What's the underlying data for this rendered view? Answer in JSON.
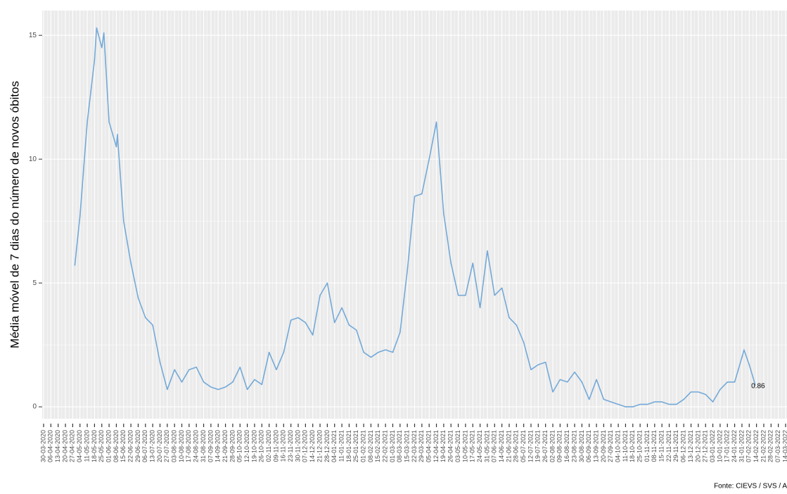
{
  "chart_data": {
    "type": "line",
    "y_label": "Média móvel de 7 dias do número de novos óbitos",
    "caption": "Fonte: CIEVS / SVS / A",
    "color": "#74a9d8",
    "grid": true,
    "end_label": "0.86",
    "ylim": [
      -0.48,
      16
    ],
    "yticks": [
      0,
      5,
      10,
      15
    ],
    "xlim": [
      "30-03-2020",
      "14-03-2022"
    ],
    "xticks": [
      "30-03-2020",
      "06-04-2020",
      "13-04-2020",
      "20-04-2020",
      "27-04-2020",
      "04-05-2020",
      "11-05-2020",
      "18-05-2020",
      "25-05-2020",
      "01-06-2020",
      "08-06-2020",
      "15-06-2020",
      "22-06-2020",
      "29-06-2020",
      "06-07-2020",
      "13-07-2020",
      "20-07-2020",
      "27-07-2020",
      "03-08-2020",
      "10-08-2020",
      "17-08-2020",
      "24-08-2020",
      "31-08-2020",
      "07-09-2020",
      "14-09-2020",
      "21-09-2020",
      "28-09-2020",
      "05-10-2020",
      "12-10-2020",
      "19-10-2020",
      "26-10-2020",
      "02-11-2020",
      "09-11-2020",
      "16-11-2020",
      "23-11-2020",
      "30-11-2020",
      "07-12-2020",
      "14-12-2020",
      "21-12-2020",
      "28-12-2020",
      "04-01-2021",
      "11-01-2021",
      "18-01-2021",
      "25-01-2021",
      "01-02-2021",
      "08-02-2021",
      "15-02-2021",
      "22-02-2021",
      "01-03-2021",
      "08-03-2021",
      "15-03-2021",
      "22-03-2021",
      "29-03-2021",
      "05-04-2021",
      "12-04-2021",
      "19-04-2021",
      "26-04-2021",
      "03-05-2021",
      "10-05-2021",
      "17-05-2021",
      "24-05-2021",
      "31-05-2021",
      "07-06-2021",
      "14-06-2021",
      "21-06-2021",
      "28-06-2021",
      "05-07-2021",
      "12-07-2021",
      "19-07-2021",
      "26-07-2021",
      "02-08-2021",
      "09-08-2021",
      "16-08-2021",
      "23-08-2021",
      "30-08-2021",
      "06-09-2021",
      "13-09-2021",
      "20-09-2021",
      "27-09-2021",
      "04-10-2021",
      "11-10-2021",
      "18-10-2021",
      "25-10-2021",
      "01-11-2021",
      "08-11-2021",
      "15-11-2021",
      "22-11-2021",
      "29-11-2021",
      "06-12-2021",
      "13-12-2021",
      "20-12-2021",
      "27-12-2021",
      "03-01-2022",
      "10-01-2022",
      "17-01-2022",
      "24-01-2022",
      "31-01-2022",
      "07-02-2022",
      "14-02-2022",
      "21-02-2022",
      "28-02-2022",
      "07-03-2022",
      "14-03-2022"
    ],
    "x": [
      "29-04-2020",
      "04-05-2020",
      "11-05-2020",
      "18-05-2020",
      "20-05-2020",
      "25-05-2020",
      "27-05-2020",
      "01-06-2020",
      "08-06-2020",
      "09-06-2020",
      "15-06-2020",
      "22-06-2020",
      "29-06-2020",
      "06-07-2020",
      "13-07-2020",
      "20-07-2020",
      "27-07-2020",
      "03-08-2020",
      "10-08-2020",
      "17-08-2020",
      "24-08-2020",
      "31-08-2020",
      "07-09-2020",
      "14-09-2020",
      "21-09-2020",
      "28-09-2020",
      "05-10-2020",
      "12-10-2020",
      "19-10-2020",
      "26-10-2020",
      "02-11-2020",
      "09-11-2020",
      "16-11-2020",
      "23-11-2020",
      "30-11-2020",
      "07-12-2020",
      "14-12-2020",
      "21-12-2020",
      "28-12-2020",
      "04-01-2021",
      "11-01-2021",
      "18-01-2021",
      "25-01-2021",
      "01-02-2021",
      "08-02-2021",
      "15-02-2021",
      "22-02-2021",
      "01-03-2021",
      "08-03-2021",
      "15-03-2021",
      "22-03-2021",
      "29-03-2021",
      "05-04-2021",
      "12-04-2021",
      "19-04-2021",
      "26-04-2021",
      "03-05-2021",
      "10-05-2021",
      "17-05-2021",
      "24-05-2021",
      "31-05-2021",
      "07-06-2021",
      "14-06-2021",
      "21-06-2021",
      "28-06-2021",
      "05-07-2021",
      "12-07-2021",
      "19-07-2021",
      "26-07-2021",
      "02-08-2021",
      "09-08-2021",
      "16-08-2021",
      "23-08-2021",
      "30-08-2021",
      "06-09-2021",
      "13-09-2021",
      "20-09-2021",
      "27-09-2021",
      "04-10-2021",
      "11-10-2021",
      "18-10-2021",
      "25-10-2021",
      "01-11-2021",
      "08-11-2021",
      "15-11-2021",
      "22-11-2021",
      "29-11-2021",
      "06-12-2021",
      "13-12-2021",
      "20-12-2021",
      "27-12-2021",
      "03-01-2022",
      "10-01-2022",
      "17-01-2022",
      "24-01-2022",
      "31-01-2022",
      "02-02-2022",
      "07-02-2022",
      "13-02-2022"
    ],
    "values": [
      5.7,
      7.7,
      11.5,
      14.0,
      15.3,
      14.5,
      15.1,
      11.5,
      10.5,
      11.0,
      7.5,
      5.8,
      4.4,
      3.6,
      3.3,
      1.8,
      0.7,
      1.5,
      1.0,
      1.5,
      1.6,
      1.0,
      0.8,
      0.7,
      0.8,
      1.0,
      1.6,
      0.7,
      1.1,
      0.9,
      2.2,
      1.5,
      2.2,
      3.5,
      3.6,
      3.4,
      2.9,
      4.5,
      5.0,
      3.4,
      4.0,
      3.3,
      3.1,
      2.2,
      2.0,
      2.2,
      2.3,
      2.2,
      3.0,
      5.5,
      8.5,
      8.6,
      10.0,
      11.5,
      7.8,
      5.8,
      4.5,
      4.5,
      5.8,
      4.0,
      6.3,
      4.5,
      4.8,
      3.6,
      3.3,
      2.6,
      1.5,
      1.7,
      1.8,
      0.6,
      1.1,
      1.0,
      1.4,
      1.0,
      0.3,
      1.1,
      0.3,
      0.2,
      0.1,
      0.0,
      0.0,
      0.1,
      0.1,
      0.2,
      0.2,
      0.1,
      0.1,
      0.3,
      0.6,
      0.6,
      0.5,
      0.2,
      0.7,
      1.0,
      1.0,
      2.0,
      2.3,
      1.7,
      0.86
    ]
  }
}
